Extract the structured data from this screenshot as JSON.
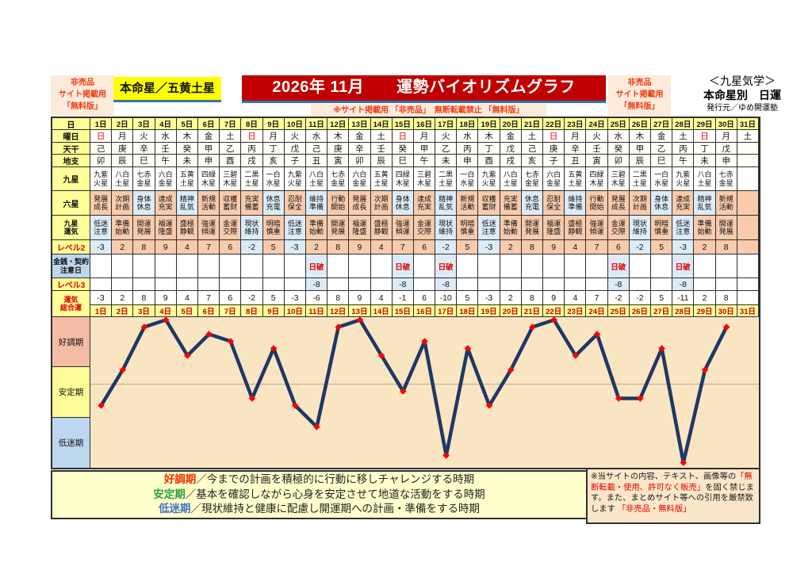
{
  "colors": {
    "title_bg": "#c00000",
    "badge_text": "#f03c14",
    "underline": "#2e75b6",
    "label_yellow": "#ffff99",
    "honmei_yellow": "#ffff00",
    "pink_cell": "#f8cbad",
    "blue_cell": "#ddebf7",
    "label_blue": "#bdd7ee",
    "graph_bg": "#fae5c3",
    "line_navy": "#1f3864",
    "marker_red": "#ff0000",
    "legend_bg": "#ffffcc",
    "red_text": "#e00000",
    "sunday_red": "#ff0000"
  },
  "header": {
    "left_badge": [
      "非売品",
      "サイト掲載用",
      "「無料版」"
    ],
    "honmei": "本命星／五黄土星",
    "title": "2026年 11月　　運勢バイオリズムグラフ",
    "sub_note": "※サイト掲載用 「非売品」　無断転載禁止 「無料版」",
    "right_badge": [
      "非売品",
      "サイト掲載用",
      "「無料版」"
    ],
    "school": "＜九星気学＞",
    "subtitle": "本命星別　日運",
    "publisher": "発行元／ゆめ開運塾"
  },
  "table": {
    "row_labels": {
      "day": "日",
      "weekday": "曜日",
      "tenkan": "天干",
      "chishi": "地支",
      "kyusei": "九星",
      "rokusei": "六星",
      "kyusei_unki": [
        "九星",
        "運気"
      ],
      "level2": "レベル2",
      "kinsen": [
        "金銭・契約",
        "注意日"
      ],
      "level3": "レベル3",
      "total": [
        "運気",
        "総合運"
      ]
    },
    "days": [
      "1日",
      "2日",
      "3日",
      "4日",
      "5日",
      "6日",
      "7日",
      "8日",
      "9日",
      "10日",
      "11日",
      "12日",
      "13日",
      "14日",
      "15日",
      "16日",
      "17日",
      "18日",
      "19日",
      "20日",
      "21日",
      "22日",
      "23日",
      "24日",
      "25日",
      "26日",
      "27日",
      "28日",
      "29日",
      "30日",
      "31日"
    ],
    "weekday": [
      "日",
      "月",
      "火",
      "水",
      "木",
      "金",
      "土",
      "日",
      "月",
      "火",
      "水",
      "木",
      "金",
      "土",
      "日",
      "月",
      "火",
      "水",
      "木",
      "金",
      "土",
      "日",
      "月",
      "火",
      "水",
      "木",
      "金",
      "土",
      "日",
      "月",
      "土"
    ],
    "sunday_char": "日",
    "tenkan": [
      "己",
      "庚",
      "辛",
      "壬",
      "癸",
      "甲",
      "乙",
      "丙",
      "丁",
      "戊",
      "己",
      "庚",
      "辛",
      "壬",
      "癸",
      "甲",
      "乙",
      "丙",
      "丁",
      "戊",
      "己",
      "庚",
      "辛",
      "壬",
      "癸",
      "甲",
      "乙",
      "丙",
      "丁",
      "戊",
      ""
    ],
    "chishi": [
      "卯",
      "辰",
      "巳",
      "午",
      "未",
      "申",
      "酉",
      "戌",
      "亥",
      "子",
      "丑",
      "寅",
      "卯",
      "辰",
      "巳",
      "午",
      "未",
      "申",
      "酉",
      "戌",
      "亥",
      "子",
      "丑",
      "寅",
      "卯",
      "辰",
      "巳",
      "午",
      "未",
      "申",
      ""
    ],
    "kyusei": [
      "九紫火星",
      "八白土星",
      "七赤金星",
      "六白金星",
      "五黄土星",
      "四緑木星",
      "三碧木星",
      "二黒土星",
      "一白水星",
      "九紫火星",
      "八白土星",
      "七赤金星",
      "六白金星",
      "五黄土星",
      "四緑木星",
      "三碧木星",
      "二黒土星",
      "一白水星",
      "九紫火星",
      "八白土星",
      "七赤金星",
      "六白金星",
      "五黄土星",
      "四緑木星",
      "三碧木星",
      "二黒土星",
      "一白水星",
      "九紫火星",
      "八白土星",
      "七赤金星",
      ""
    ],
    "rokusei": [
      "発展成長",
      "次期計画",
      "身体休息",
      "達成充実",
      "精神乱気",
      "新規活動",
      "収穫蓄財",
      "充実備蓄",
      "休息充電",
      "忍耐保全",
      "維持準備",
      "行動開始",
      "発展成長",
      "次期計画",
      "身体休息",
      "達成充実",
      "精神乱気",
      "新規活動",
      "収穫蓄財",
      "充実備蓄",
      "休息充電",
      "忍耐保全",
      "維持準備",
      "行動開始",
      "発展成長",
      "次期計画",
      "身体休息",
      "達成充実",
      "精神乱気",
      "新規活動",
      ""
    ],
    "rokusei_blue": [
      "身体休息",
      "精神乱気",
      "休息充電",
      "維持準備"
    ],
    "kyusei_unki": [
      "低迷注意",
      "準備始動",
      "開運発展",
      "福運隆盛",
      "盛極静観",
      "強運傾運",
      "金運交際",
      "現状維持",
      "明暗慎重",
      "低迷注意",
      "準備始動",
      "開運発展",
      "福運隆盛",
      "盛極静観",
      "強運傾運",
      "金運交際",
      "現状維持",
      "明暗慎重",
      "低迷注意",
      "準備始動",
      "開運発展",
      "福運隆盛",
      "盛極静観",
      "強運傾運",
      "金運交際",
      "現状維持",
      "明暗慎重",
      "低迷注意",
      "準備始動",
      "開運発展",
      ""
    ],
    "kyusei_unki_blue": [
      "低迷注意",
      "現状維持"
    ],
    "level2": [
      -3,
      2,
      8,
      9,
      4,
      7,
      6,
      -2,
      5,
      -3,
      2,
      8,
      9,
      4,
      7,
      6,
      -2,
      5,
      -3,
      2,
      8,
      9,
      4,
      7,
      6,
      -2,
      5,
      -3,
      2,
      8,
      null
    ],
    "nippa_days": [
      11,
      15,
      17,
      25,
      28
    ],
    "nippa_label": "日破",
    "level3_value": "-8",
    "total": [
      -3,
      2,
      8,
      9,
      4,
      7,
      6,
      -2,
      5,
      -3,
      -6,
      8,
      9,
      4,
      -1,
      6,
      -10,
      5,
      -3,
      2,
      8,
      9,
      4,
      7,
      -2,
      -2,
      5,
      -11,
      2,
      8,
      null
    ]
  },
  "zones": [
    {
      "label": "好調期",
      "color": "#f4bba5"
    },
    {
      "label": "安定期",
      "color": "#fcfc99"
    },
    {
      "label": "低迷期",
      "color": "#bdd7ee"
    }
  ],
  "legend": {
    "items": [
      {
        "term": "好調期",
        "color": "#f03000",
        "desc": "／今までの計画を積極的に行動に移しチャレンジする時期"
      },
      {
        "term": "安定期",
        "color": "#2e9e3e",
        "desc": "／基本を確認しながら心身を安定させて地道な活動をする時期"
      },
      {
        "term": "低迷期",
        "color": "#4472c4",
        "desc": "／現状維持と健康に配慮し開運期への計画・準備をする時期"
      }
    ]
  },
  "footer": {
    "segments": [
      {
        "text": "※当サイトの内容、テキスト、画像等の",
        "red": false
      },
      {
        "text": "「無断転載・使用、許可なく販売」",
        "red": true
      },
      {
        "text": "を固く禁じます。また、まとめサイト等への引用を厳禁致します ",
        "red": false
      },
      {
        "text": "「非売品・無料版」",
        "red": true
      }
    ]
  },
  "chart_data": {
    "type": "line",
    "title": "2026年 11月 運勢バイオリズムグラフ（運気総合運）",
    "x": [
      1,
      2,
      3,
      4,
      5,
      6,
      7,
      8,
      9,
      10,
      11,
      12,
      13,
      14,
      15,
      16,
      17,
      18,
      19,
      20,
      21,
      22,
      23,
      24,
      25,
      26,
      27,
      28,
      29,
      30
    ],
    "values": [
      -3,
      2,
      8,
      9,
      4,
      7,
      6,
      -2,
      5,
      -3,
      -6,
      8,
      9,
      4,
      -1,
      6,
      -10,
      5,
      -3,
      2,
      8,
      9,
      4,
      7,
      -2,
      -2,
      5,
      -11,
      2,
      8
    ],
    "xlabel": "日",
    "ylabel": "運気総合運",
    "ylim": [
      -12,
      10
    ],
    "gridline_y": 0,
    "grid": "single horizontal line at 0",
    "zones": [
      "好調期",
      "安定期",
      "低迷期"
    ],
    "line_color": "#1f3864",
    "marker": "diamond",
    "marker_color": "#ff0000",
    "legend_position": "below"
  }
}
